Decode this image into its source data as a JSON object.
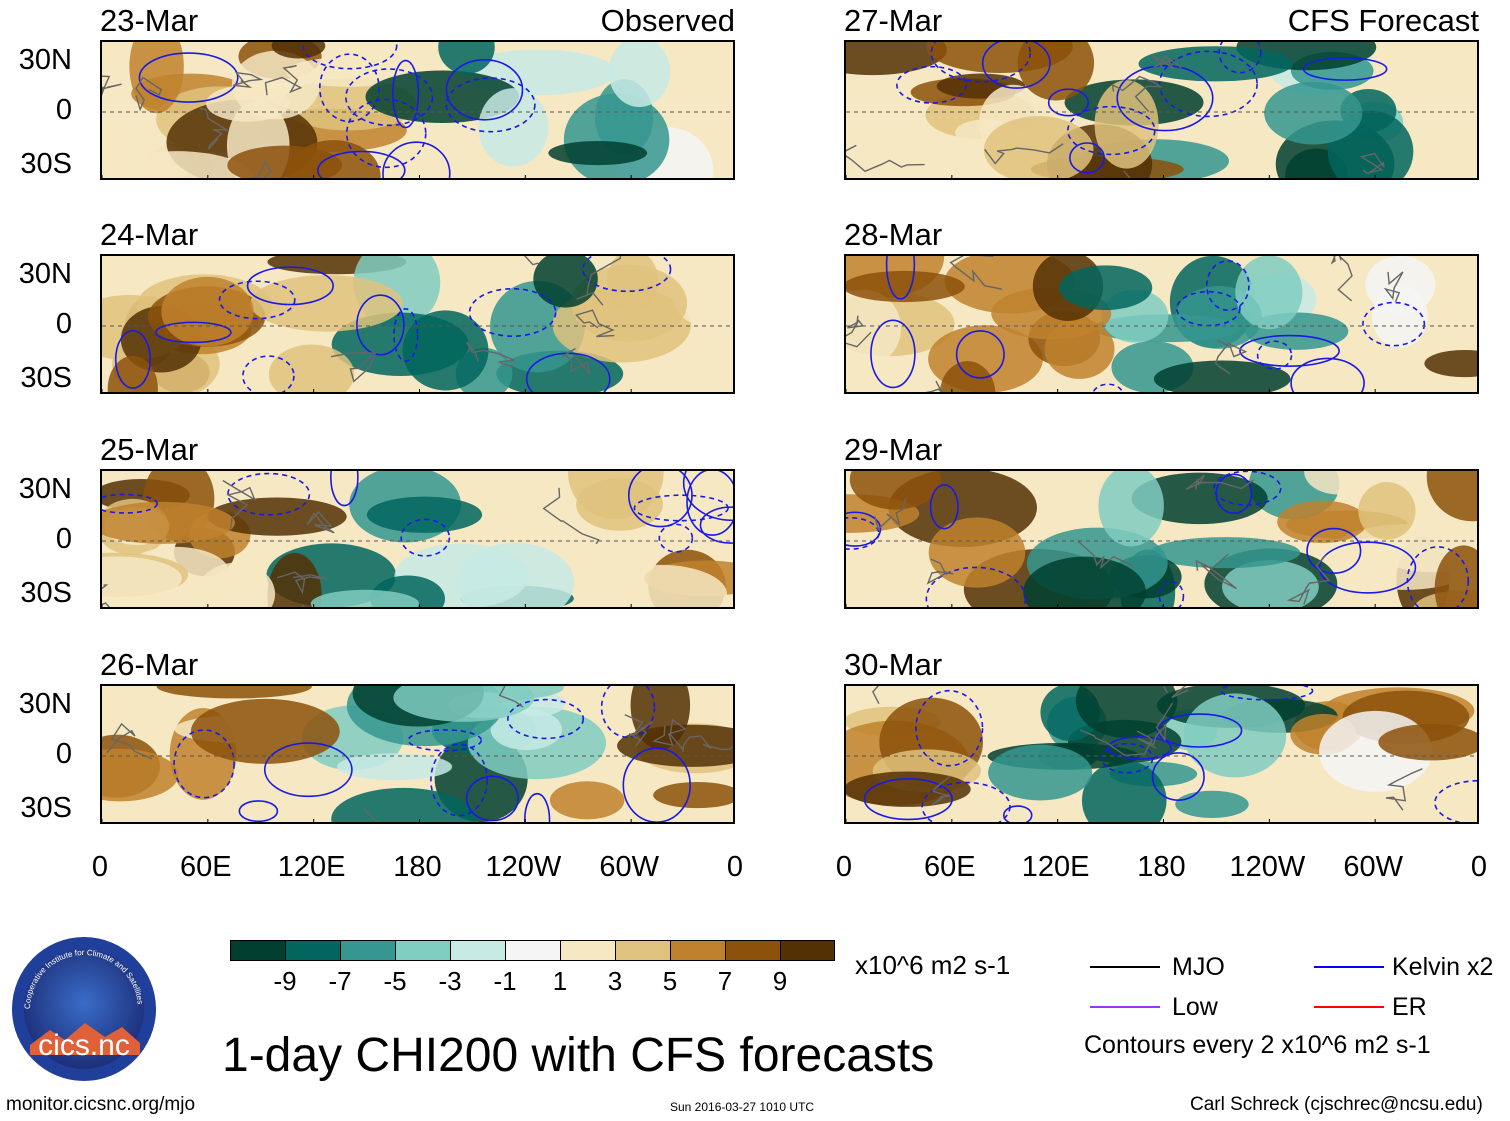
{
  "panels": [
    {
      "date": "23-Mar",
      "tag": "Observed"
    },
    {
      "date": "24-Mar",
      "tag": ""
    },
    {
      "date": "25-Mar",
      "tag": ""
    },
    {
      "date": "26-Mar",
      "tag": ""
    },
    {
      "date": "27-Mar",
      "tag": "CFS Forecast"
    },
    {
      "date": "28-Mar",
      "tag": ""
    },
    {
      "date": "29-Mar",
      "tag": ""
    },
    {
      "date": "30-Mar",
      "tag": ""
    }
  ],
  "lat_labels": [
    "30N",
    "0",
    "30S"
  ],
  "lon_labels": [
    "0",
    "60E",
    "120E",
    "180",
    "120W",
    "60W",
    "0"
  ],
  "colorbar": {
    "colors": [
      "#003f2f",
      "#01665e",
      "#35978f",
      "#80cdc1",
      "#c7eae5",
      "#f5f5f5",
      "#f6e8c3",
      "#dfc27d",
      "#bf812d",
      "#8c510a",
      "#543005"
    ],
    "ticks": [
      "-9",
      "-7",
      "-5",
      "-3",
      "-1",
      "1",
      "3",
      "5",
      "7",
      "9"
    ],
    "units": "x10^6 m2 s-1"
  },
  "legend": {
    "items": [
      {
        "label": "MJO",
        "color": "#000000"
      },
      {
        "label": "Kelvin x2",
        "color": "#0000ff"
      },
      {
        "label": "Low",
        "color": "#9933ff"
      },
      {
        "label": "ER",
        "color": "#ff0000"
      }
    ],
    "contours": "Contours every 2 x10^6 m2 s-1"
  },
  "logo": {
    "text": "cics.nc",
    "ring_text": "Cooperative Institute for Climate and Satellites"
  },
  "title": "1-day CHI200 with CFS forecasts",
  "footer": {
    "left": "monitor.cicsnc.org/mjo",
    "center": "Sun 2016-03-27 1010 UTC",
    "right": "Carl Schreck (cjschrec@ncsu.edu)"
  }
}
